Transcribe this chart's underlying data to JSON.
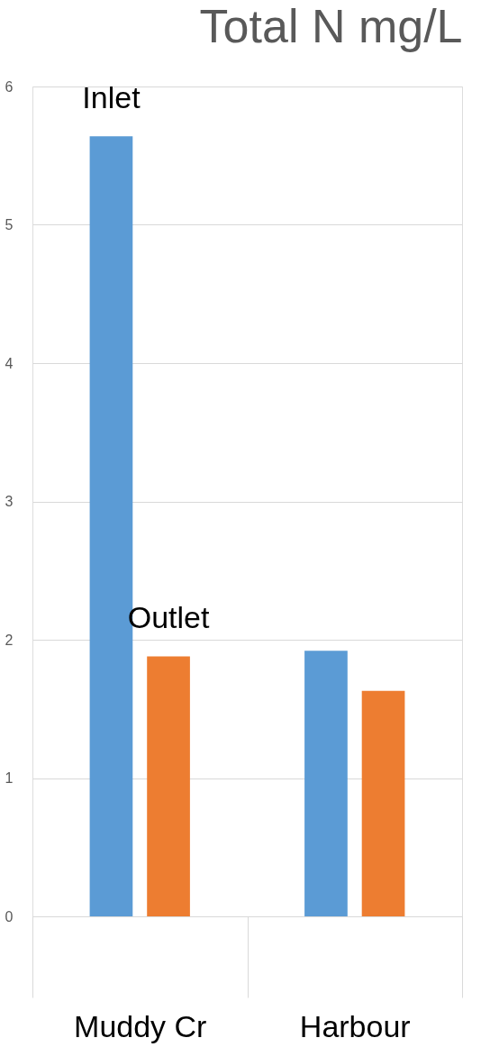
{
  "chart_data": {
    "type": "bar",
    "title": "Total N mg/L",
    "categories": [
      "Muddy Cr",
      "Harbour"
    ],
    "series": [
      {
        "name": "Inlet",
        "color": "#5b9bd5",
        "values": [
          5.64,
          1.92
        ]
      },
      {
        "name": "Outlet",
        "color": "#ed7d31",
        "values": [
          1.88,
          1.63
        ]
      }
    ],
    "ylim": [
      0,
      6
    ],
    "yticks": [
      0,
      1,
      2,
      3,
      4,
      5,
      6
    ],
    "grid": "y",
    "legend": false
  }
}
